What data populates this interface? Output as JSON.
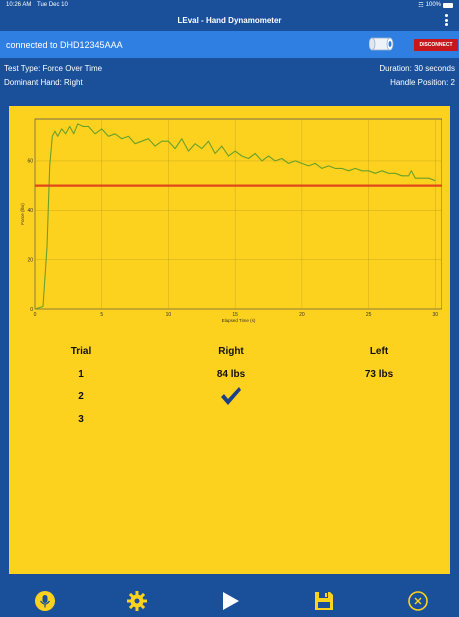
{
  "status": {
    "time": "10:26 AM",
    "date": "Tue Dec 10",
    "battery": "100%"
  },
  "header": {
    "title": "LEval - Hand Dynamometer"
  },
  "connection": {
    "text": "connected to DHD12345AAA",
    "disconnect_label": "DISCONNECT"
  },
  "test_info": {
    "test_type": "Test Type: Force Over Time",
    "duration": "Duration: 30 seconds",
    "dominant_hand": "Dominant Hand: Right",
    "handle_position": "Handle Position: 2"
  },
  "chart_data": {
    "type": "line",
    "xlabel": "Elapsed Time (s)",
    "ylabel": "Force (lbs)",
    "xlim": [
      0,
      30.5
    ],
    "ylim": [
      0,
      77
    ],
    "xticks": [
      0,
      5,
      10,
      15,
      20,
      25,
      30
    ],
    "yticks": [
      0,
      20,
      40,
      60
    ],
    "grid": true,
    "threshold": 50,
    "series": [
      {
        "color": "#6aa02a",
        "x": [
          0,
          0.6,
          0.9,
          1.1,
          1.3,
          1.5,
          1.7,
          2.0,
          2.3,
          2.6,
          2.9,
          3.2,
          3.6,
          4.0,
          4.5,
          5,
          5.5,
          6,
          6.5,
          7,
          7.5,
          8,
          8.5,
          9,
          9.5,
          10,
          10.5,
          11,
          11.5,
          12,
          12.5,
          13,
          13.5,
          14,
          14.5,
          15,
          15.5,
          16,
          16.5,
          17,
          17.5,
          18,
          18.5,
          19,
          19.5,
          20,
          20.5,
          21,
          21.5,
          22,
          22.5,
          23,
          23.5,
          24,
          24.5,
          25,
          25.5,
          26,
          26.5,
          27,
          27.5,
          28,
          28.2,
          28.5,
          29,
          29.5,
          30
        ],
        "y": [
          0,
          1,
          25,
          58,
          70,
          72,
          70,
          73,
          71,
          74,
          71,
          75,
          74,
          74,
          71,
          73,
          70,
          71,
          69,
          70,
          67,
          68,
          69,
          66,
          68,
          68,
          65,
          69,
          64,
          67,
          65,
          68,
          63,
          66,
          62,
          64,
          62,
          61,
          63,
          60,
          62,
          60,
          61,
          59,
          60,
          59,
          58,
          59,
          57,
          58,
          57,
          57,
          56,
          57,
          56,
          56,
          55,
          56,
          55,
          55,
          54,
          54,
          56,
          53,
          53,
          53,
          52
        ]
      }
    ]
  },
  "results": {
    "headers": {
      "trial": "Trial",
      "right": "Right",
      "left": "Left"
    },
    "rows": [
      {
        "trial": "1",
        "right": "84 lbs",
        "left": "73 lbs"
      },
      {
        "trial": "2",
        "right": "",
        "left": ""
      },
      {
        "trial": "3",
        "right": "",
        "left": ""
      }
    ],
    "checkmark_icon": "checkmark-icon"
  },
  "nav": {
    "items": [
      {
        "icon": "mic-info-icon"
      },
      {
        "icon": "gear-icon"
      },
      {
        "icon": "play-icon"
      },
      {
        "icon": "save-icon"
      },
      {
        "icon": "close-icon"
      }
    ]
  },
  "colors": {
    "background": "#1a4f9a",
    "connection_bar": "#2f7fe3",
    "panel": "#fcd21e",
    "disconnect": "#c8161d",
    "threshold_line": "#e0461a",
    "series": "#6aa02a"
  }
}
